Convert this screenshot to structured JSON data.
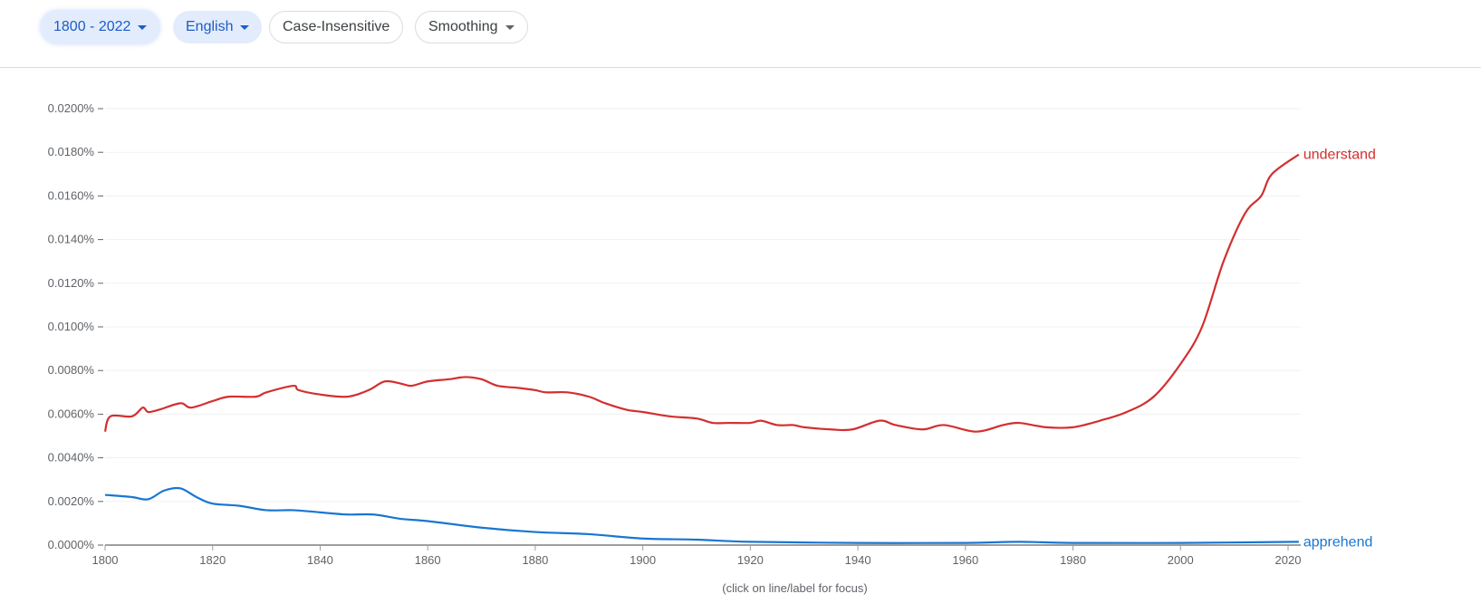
{
  "toolbar": {
    "year_range": "1800 - 2022",
    "language": "English",
    "case": "Case-Insensitive",
    "smoothing": "Smoothing"
  },
  "hint": "(click on line/label for focus)",
  "chart_data": {
    "type": "line",
    "x_range": [
      1800,
      2022
    ],
    "ylim": [
      0,
      0.02
    ],
    "y_unit": "%",
    "grid": true,
    "x_ticks": [
      "1800",
      "1820",
      "1840",
      "1860",
      "1880",
      "1900",
      "1920",
      "1940",
      "1960",
      "1980",
      "2000",
      "2020"
    ],
    "y_ticks": [
      "0.0000%",
      "0.0020%",
      "0.0040%",
      "0.0060%",
      "0.0080%",
      "0.0100%",
      "0.0120%",
      "0.0140%",
      "0.0160%",
      "0.0180%",
      "0.0200%"
    ],
    "series": [
      {
        "name": "understand",
        "color": "#d32f2f",
        "x": [
          1800,
          1801,
          1805,
          1807,
          1808,
          1810,
          1814,
          1816,
          1820,
          1823,
          1828,
          1830,
          1835,
          1836,
          1840,
          1845,
          1849,
          1852,
          1855,
          1857,
          1860,
          1864,
          1867,
          1870,
          1873,
          1877,
          1880,
          1882,
          1886,
          1890,
          1893,
          1897,
          1900,
          1905,
          1910,
          1913,
          1916,
          1920,
          1922,
          1925,
          1928,
          1930,
          1935,
          1939,
          1944,
          1947,
          1952,
          1956,
          1962,
          1967,
          1970,
          1975,
          1980,
          1985,
          1990,
          1995,
          2000,
          2004,
          2008,
          2012,
          2015,
          2017,
          2022
        ],
        "y": [
          0.0052,
          0.0059,
          0.0059,
          0.0063,
          0.0061,
          0.0062,
          0.0065,
          0.0063,
          0.0066,
          0.0068,
          0.0068,
          0.007,
          0.0073,
          0.0071,
          0.0069,
          0.0068,
          0.0071,
          0.0075,
          0.0074,
          0.0073,
          0.0075,
          0.0076,
          0.0077,
          0.0076,
          0.0073,
          0.0072,
          0.0071,
          0.007,
          0.007,
          0.0068,
          0.0065,
          0.0062,
          0.0061,
          0.0059,
          0.0058,
          0.0056,
          0.0056,
          0.0056,
          0.0057,
          0.0055,
          0.0055,
          0.0054,
          0.0053,
          0.0053,
          0.0057,
          0.0055,
          0.0053,
          0.0055,
          0.0052,
          0.0055,
          0.0056,
          0.0054,
          0.0054,
          0.0057,
          0.0061,
          0.0068,
          0.0083,
          0.01,
          0.013,
          0.0152,
          0.016,
          0.017,
          0.0179
        ]
      },
      {
        "name": "apprehend",
        "color": "#1976d2",
        "x": [
          1800,
          1805,
          1808,
          1811,
          1814,
          1817,
          1820,
          1825,
          1830,
          1835,
          1840,
          1845,
          1850,
          1855,
          1860,
          1870,
          1880,
          1890,
          1900,
          1910,
          1920,
          1940,
          1960,
          1970,
          1980,
          2000,
          2022
        ],
        "y": [
          0.0023,
          0.0022,
          0.0021,
          0.0025,
          0.0026,
          0.0022,
          0.0019,
          0.0018,
          0.0016,
          0.0016,
          0.0015,
          0.0014,
          0.0014,
          0.0012,
          0.0011,
          0.0008,
          0.0006,
          0.0005,
          0.0003,
          0.00025,
          0.00015,
          0.0001,
          0.0001,
          0.00015,
          0.0001,
          0.0001,
          0.00015
        ]
      }
    ]
  }
}
